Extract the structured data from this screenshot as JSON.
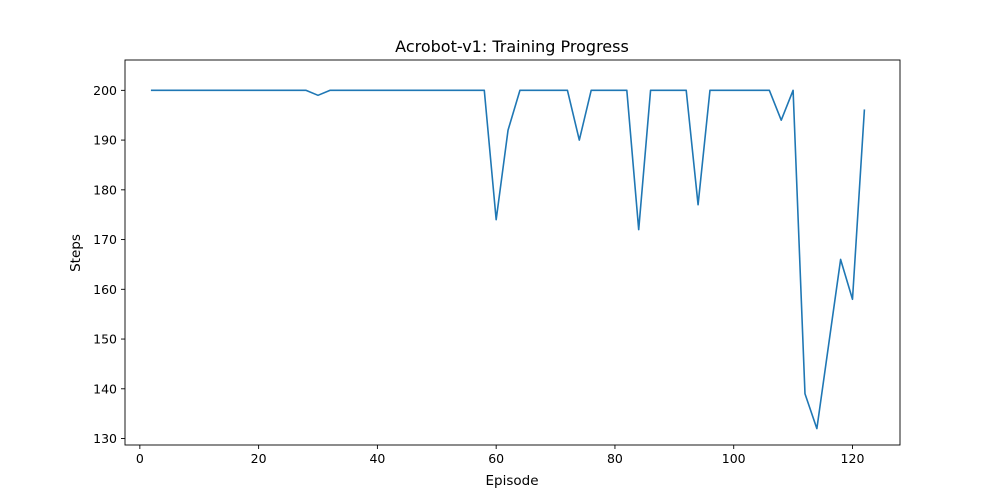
{
  "chart_data": {
    "type": "line",
    "title": "Acrobot-v1: Training Progress",
    "xlabel": "Episode",
    "ylabel": "Steps",
    "xlim": [
      -2.5,
      128
    ],
    "ylim": [
      128.7,
      206.1
    ],
    "xticks": [
      0,
      20,
      40,
      60,
      80,
      100,
      120
    ],
    "yticks": [
      130,
      140,
      150,
      160,
      170,
      180,
      190,
      200
    ],
    "grid": false,
    "series": [
      {
        "color": "#1f77b4",
        "x": [
          2,
          4,
          6,
          8,
          10,
          12,
          14,
          16,
          18,
          20,
          22,
          24,
          26,
          28,
          30,
          32,
          34,
          36,
          38,
          40,
          42,
          44,
          46,
          48,
          50,
          52,
          54,
          56,
          58,
          60,
          62,
          64,
          66,
          68,
          70,
          72,
          74,
          76,
          78,
          80,
          82,
          84,
          86,
          88,
          90,
          92,
          94,
          96,
          98,
          100,
          102,
          104,
          106,
          108,
          110,
          112,
          114,
          116,
          118,
          120,
          122
        ],
        "y": [
          200,
          200,
          200,
          200,
          200,
          200,
          200,
          200,
          200,
          200,
          200,
          200,
          200,
          200,
          199,
          200,
          200,
          200,
          200,
          200,
          200,
          200,
          200,
          200,
          200,
          200,
          200,
          200,
          200,
          174,
          192,
          200,
          200,
          200,
          200,
          200,
          190,
          200,
          200,
          200,
          200,
          172,
          200,
          200,
          200,
          200,
          177,
          200,
          200,
          200,
          200,
          200,
          200,
          194,
          200,
          139,
          132,
          149,
          166,
          158,
          196
        ]
      }
    ]
  }
}
